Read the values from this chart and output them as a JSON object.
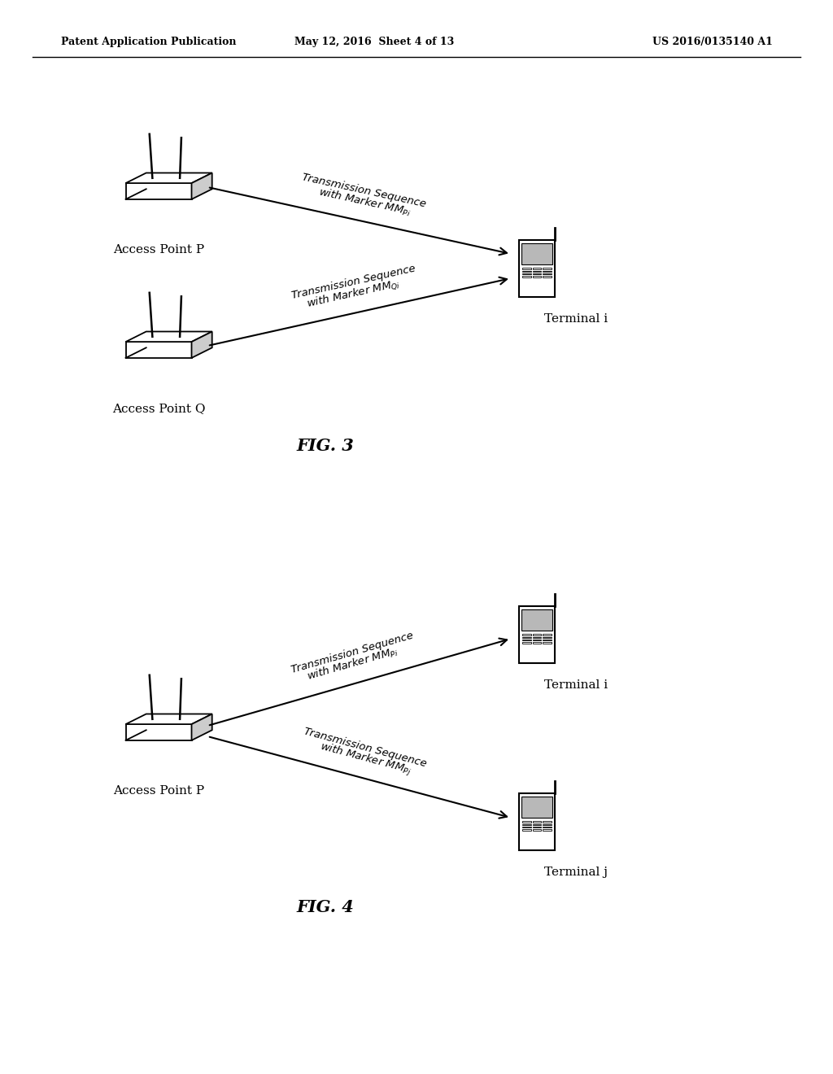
{
  "bg_color": "#ffffff",
  "header_left": "Patent Application Publication",
  "header_mid": "May 12, 2016  Sheet 4 of 13",
  "header_right": "US 2016/0135140 A1",
  "fig3_label": "FIG. 3",
  "fig4_label": "FIG. 4",
  "fig3": {
    "ap_p_label": "Access Point P",
    "ap_q_label": "Access Point Q",
    "terminal_i_label": "Terminal i",
    "arrow1_text_line1": "Transmission Sequence",
    "arrow1_text_line2": "with Marker M",
    "arrow1_sub": "Pi",
    "arrow2_text_line1": "Transmission Sequence",
    "arrow2_text_line2": "with Marker M",
    "arrow2_sub": "Qi"
  },
  "fig4": {
    "ap_p_label": "Access Point P",
    "terminal_i_label": "Terminal i",
    "terminal_j_label": "Terminal j",
    "arrow1_text_line1": "Transmission Sequence",
    "arrow1_text_line2": "with Marker M",
    "arrow1_sub": "Pi",
    "arrow2_text_line1": "Transmission Sequence",
    "arrow2_text_line2": "with Marker M",
    "arrow2_sub": "Pj"
  },
  "text_fontsize": 10,
  "label_fontsize": 11,
  "arrow_fontsize": 9.5
}
